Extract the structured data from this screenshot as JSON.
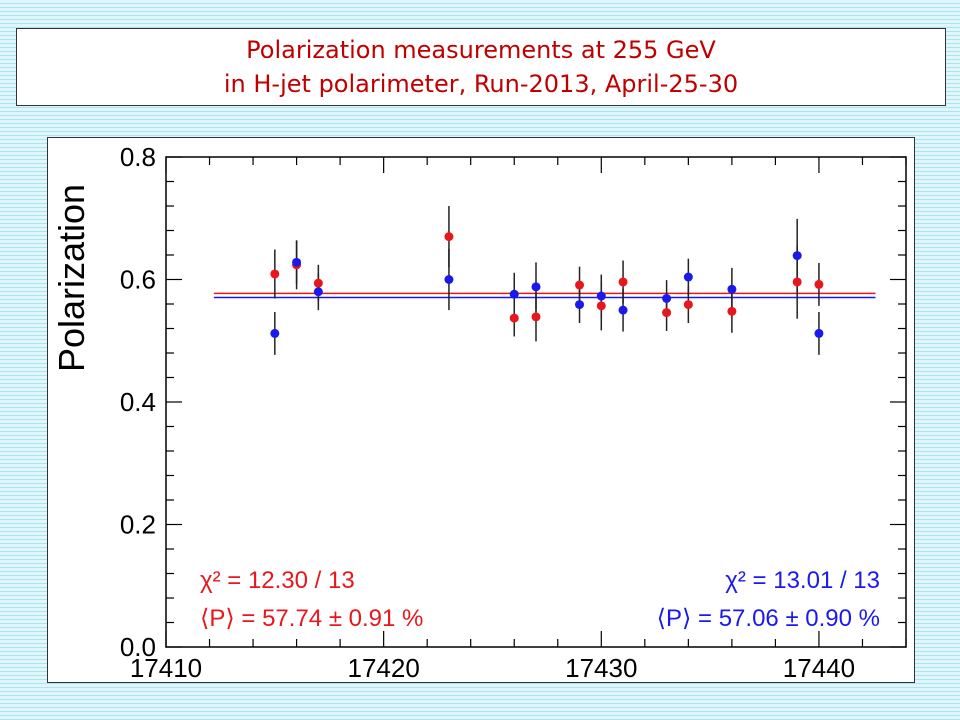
{
  "title": {
    "line1": "Polarization measurements at 255 GeV",
    "line2": "in H-jet polarimeter, Run-2013, April-25-30"
  },
  "colors": {
    "red": "#e8171c",
    "blue": "#1a1aea",
    "title": "#c00000"
  },
  "chart_data": {
    "type": "scatter",
    "ylabel": "Polarization",
    "xlabel": "",
    "xlim": [
      17410,
      17444
    ],
    "ylim": [
      0,
      0.8
    ],
    "x_ticks": [
      17410,
      17420,
      17430,
      17440
    ],
    "y_ticks": [
      0.0,
      0.2,
      0.4,
      0.6,
      0.8
    ],
    "y_tick_labels": [
      "0.0",
      "0.2",
      "0.4",
      "0.6",
      "0.8"
    ],
    "grid": false,
    "series": [
      {
        "color": "#e8171c",
        "points": [
          {
            "x": 17415,
            "y": 0.609,
            "err": 0.04
          },
          {
            "x": 17416,
            "y": 0.624,
            "err": 0.04
          },
          {
            "x": 17417,
            "y": 0.594,
            "err": 0.03
          },
          {
            "x": 17423,
            "y": 0.67,
            "err": 0.05
          },
          {
            "x": 17426,
            "y": 0.537,
            "err": 0.03
          },
          {
            "x": 17427,
            "y": 0.539,
            "err": 0.04
          },
          {
            "x": 17429,
            "y": 0.591,
            "err": 0.03
          },
          {
            "x": 17430,
            "y": 0.557,
            "err": 0.04
          },
          {
            "x": 17431,
            "y": 0.596,
            "err": 0.035
          },
          {
            "x": 17433,
            "y": 0.546,
            "err": 0.03
          },
          {
            "x": 17434,
            "y": 0.559,
            "err": 0.03
          },
          {
            "x": 17436,
            "y": 0.548,
            "err": 0.035
          },
          {
            "x": 17439,
            "y": 0.596,
            "err": 0.06
          },
          {
            "x": 17440,
            "y": 0.592,
            "err": 0.035
          }
        ],
        "fit_value": 0.5774,
        "stat_chi2": "χ² = 12.30 / 13",
        "stat_mean": "⟨P⟩ = 57.74 ± 0.91 %"
      },
      {
        "color": "#1a1aea",
        "points": [
          {
            "x": 17415,
            "y": 0.512,
            "err": 0.035
          },
          {
            "x": 17416,
            "y": 0.628,
            "err": 0.035
          },
          {
            "x": 17417,
            "y": 0.58,
            "err": 0.03
          },
          {
            "x": 17423,
            "y": 0.6,
            "err": 0.05
          },
          {
            "x": 17426,
            "y": 0.576,
            "err": 0.035
          },
          {
            "x": 17427,
            "y": 0.588,
            "err": 0.04
          },
          {
            "x": 17429,
            "y": 0.559,
            "err": 0.03
          },
          {
            "x": 17430,
            "y": 0.573,
            "err": 0.035
          },
          {
            "x": 17431,
            "y": 0.55,
            "err": 0.035
          },
          {
            "x": 17433,
            "y": 0.569,
            "err": 0.03
          },
          {
            "x": 17434,
            "y": 0.604,
            "err": 0.03
          },
          {
            "x": 17436,
            "y": 0.584,
            "err": 0.035
          },
          {
            "x": 17439,
            "y": 0.639,
            "err": 0.06
          },
          {
            "x": 17440,
            "y": 0.512,
            "err": 0.035
          }
        ],
        "fit_value": 0.5706,
        "stat_chi2": "χ² = 13.01 / 13",
        "stat_mean": "⟨P⟩ = 57.06 ± 0.90 %"
      }
    ]
  }
}
